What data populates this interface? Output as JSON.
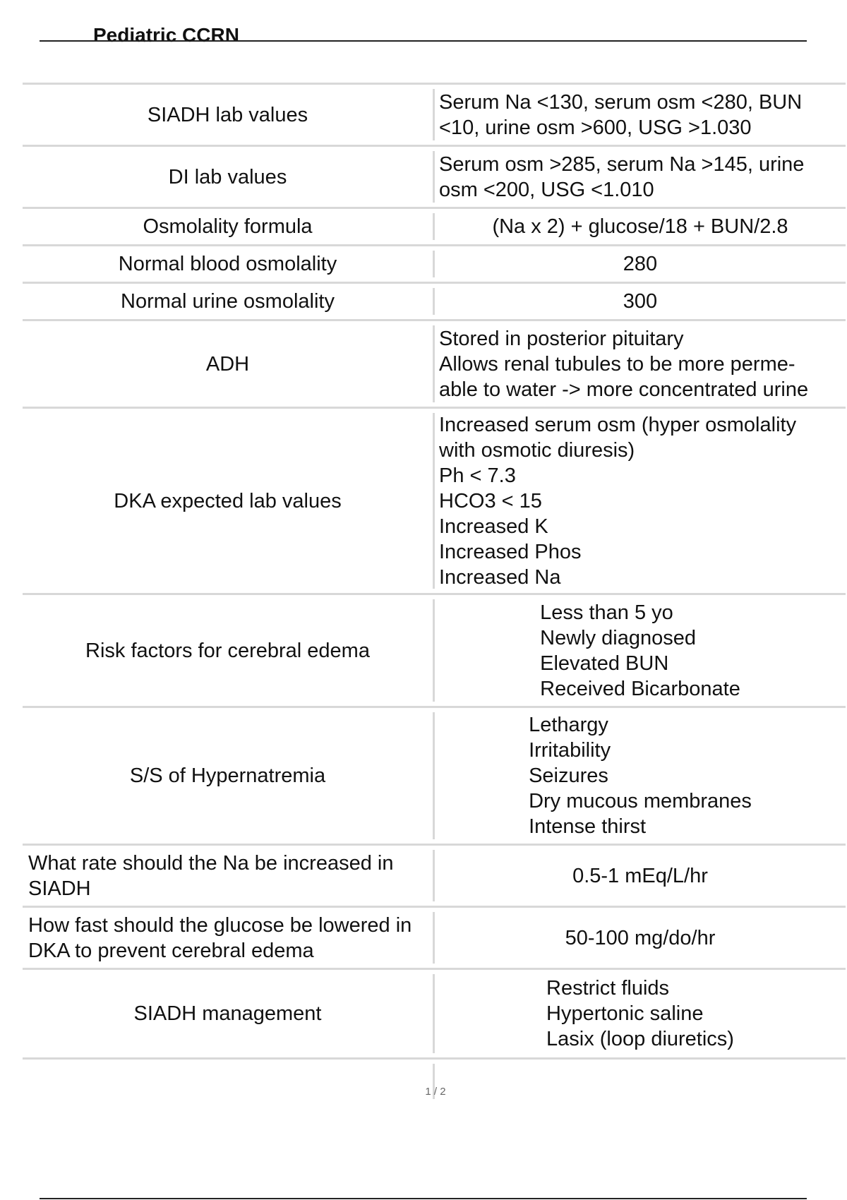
{
  "header": {
    "title": "Pediatric CCRN"
  },
  "table": {
    "rows": [
      {
        "term": "SIADH lab values",
        "lines": [
          "Serum Na <130, serum osm <280, BUN",
          "<10, urine osm >600, USG >1.030"
        ]
      },
      {
        "term": "DI lab values",
        "lines": [
          "Serum osm >285, serum Na >145, urine",
          "osm <200, USG <1.010"
        ]
      },
      {
        "term": "Osmolality formula",
        "lines": [
          "(Na x 2) + glucose/18 + BUN/2.8"
        ]
      },
      {
        "term": "Normal blood osmolality",
        "lines": [
          "280"
        ]
      },
      {
        "term": "Normal urine osmolality",
        "lines": [
          "300"
        ]
      },
      {
        "term": "ADH",
        "lines": [
          "Stored in posterior pituitary",
          "Allows renal tubules to be more perme-",
          "able to water -> more concentrated urine"
        ]
      },
      {
        "term": "DKA expected lab values",
        "lines": [
          "Increased serum osm (hyper osmolality",
          "with osmotic diuresis)",
          "Ph < 7.3",
          "HCO3 < 15",
          "Increased K",
          "Increased Phos",
          "Increased Na"
        ]
      },
      {
        "term": "Risk factors for cerebral edema",
        "lines": [
          "Less than 5 yo",
          "Newly diagnosed",
          "Elevated BUN",
          "Received Bicarbonate"
        ]
      },
      {
        "term": "S/S of Hypernatremia",
        "lines": [
          "Lethargy",
          "Irritability",
          "Seizures",
          "Dry mucous membranes",
          "Intense thirst"
        ]
      },
      {
        "term": "What rate should the Na be increased in SIADH",
        "lines": [
          "0.5-1 mEq/L/hr"
        ]
      },
      {
        "term": "How fast should the glucose be lowered in DKA to prevent cerebral edema",
        "lines": [
          "50-100 mg/do/hr"
        ]
      },
      {
        "term": "SIADH management",
        "lines": [
          "Restrict fluids",
          "Hypertonic saline",
          "Lasix (loop diuretics)"
        ]
      }
    ]
  },
  "footer": {
    "page_number": "1 / 2"
  }
}
